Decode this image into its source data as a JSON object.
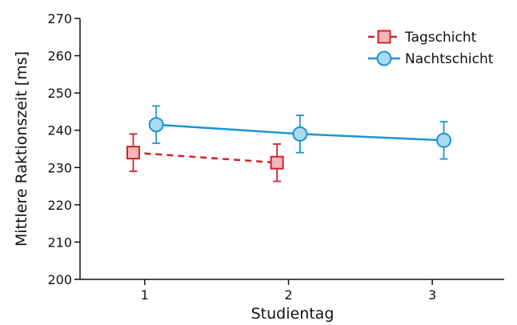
{
  "chart_data": {
    "type": "line",
    "xlabel": "Studientag",
    "ylabel": "Mittlere Raktionszeit [ms]",
    "ylim": [
      200,
      270
    ],
    "xlim": [
      0.55,
      3.5
    ],
    "yticks": [
      200,
      210,
      220,
      230,
      240,
      250,
      260,
      270
    ],
    "xticks": [
      1,
      2,
      3
    ],
    "grid": false,
    "legend_position": "top-right",
    "series": [
      {
        "name": "Tagschicht",
        "marker": "square",
        "line_style": "dashed",
        "line_color": "#d0232a",
        "fill_color": "#f4b6b8",
        "x": [
          1,
          2
        ],
        "y": [
          234,
          231.3
        ],
        "error": [
          5,
          5
        ]
      },
      {
        "name": "Nachtschicht",
        "marker": "circle",
        "line_style": "solid",
        "line_color": "#1b95d2",
        "fill_color": "#a9dbf2",
        "x": [
          1,
          2,
          3
        ],
        "y": [
          241.5,
          239,
          237.3
        ],
        "error": [
          5,
          5,
          5
        ]
      }
    ]
  }
}
